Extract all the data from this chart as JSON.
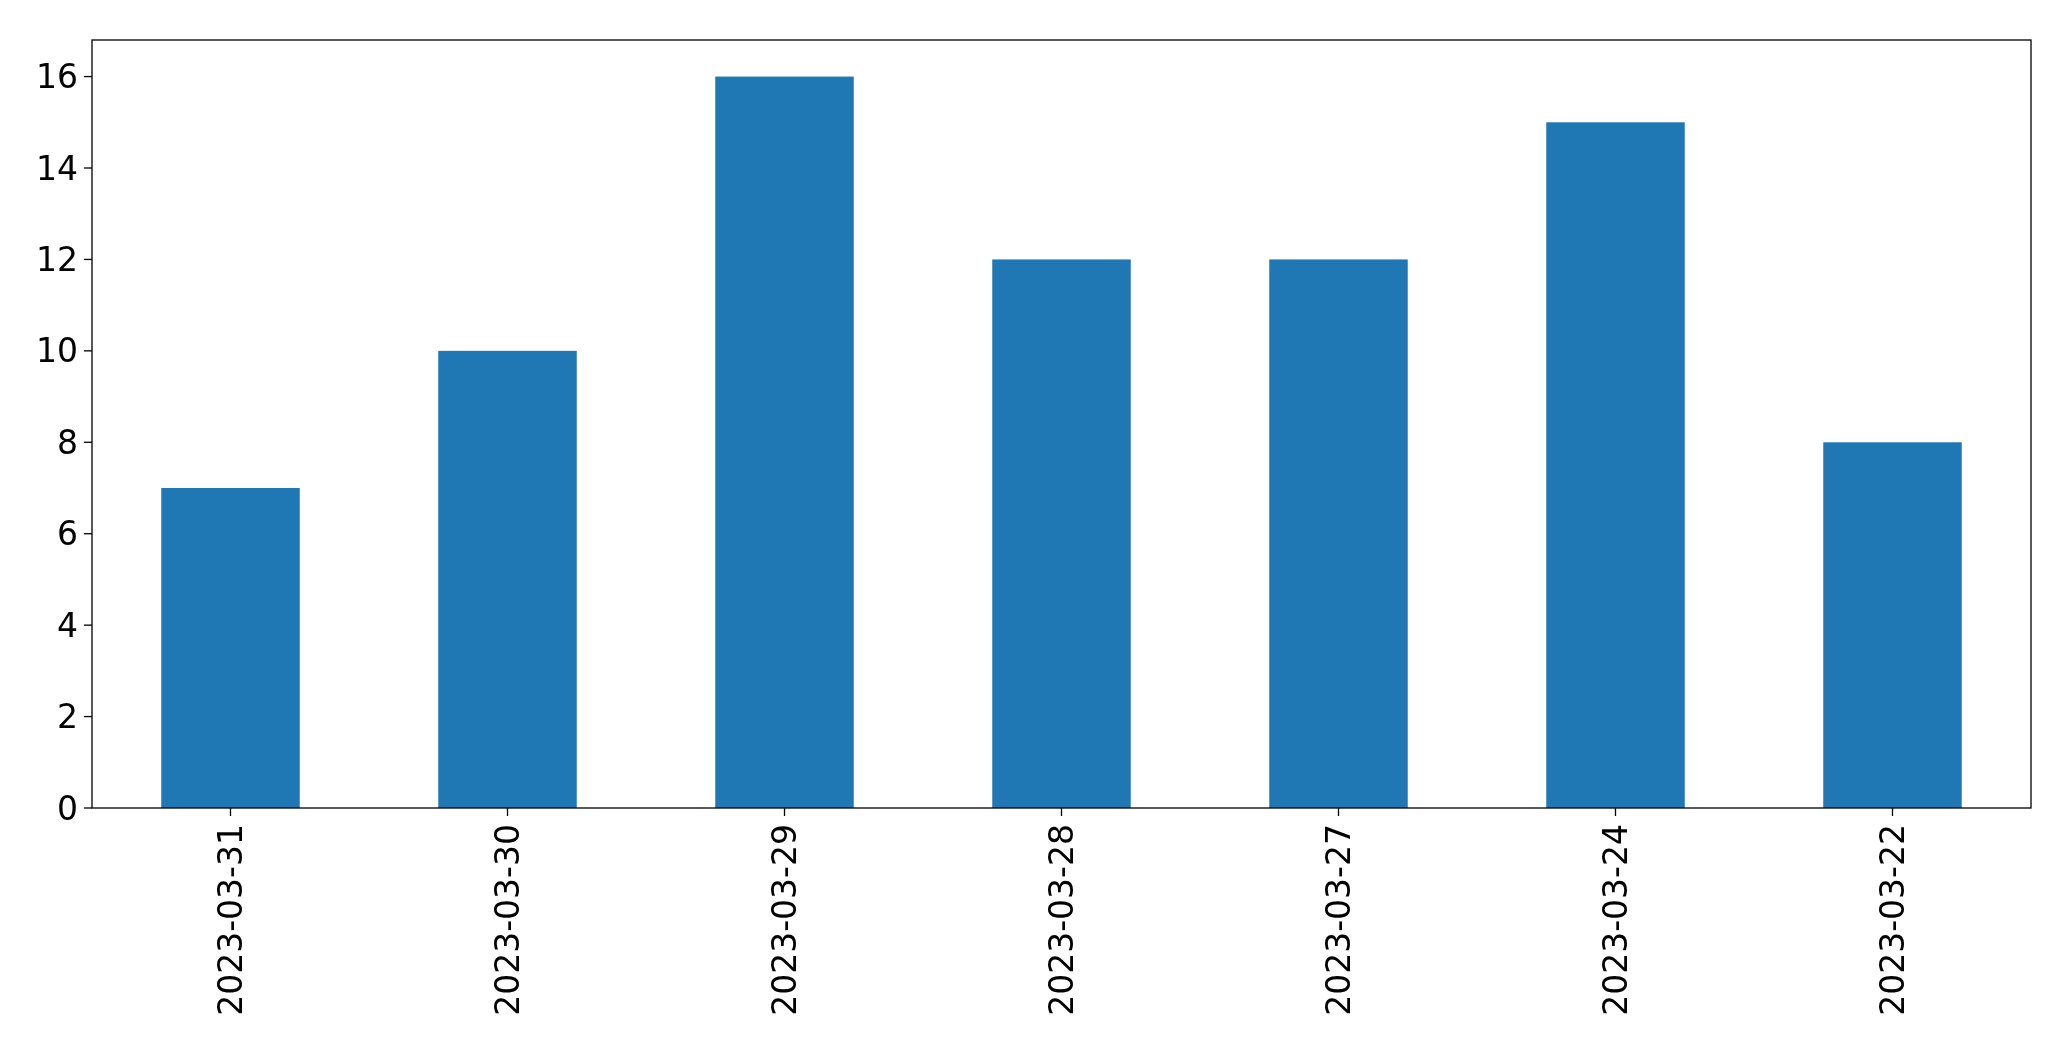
{
  "chart_data": {
    "type": "bar",
    "categories": [
      "2023-03-31",
      "2023-03-30",
      "2023-03-29",
      "2023-03-28",
      "2023-03-27",
      "2023-03-24",
      "2023-03-22"
    ],
    "values": [
      7,
      10,
      16,
      12,
      12,
      15,
      8
    ],
    "color": "#1f77b4",
    "ylim": [
      0,
      16.8
    ],
    "yticks": [
      0,
      2,
      4,
      6,
      8,
      10,
      12,
      14,
      16
    ],
    "grid": false
  }
}
